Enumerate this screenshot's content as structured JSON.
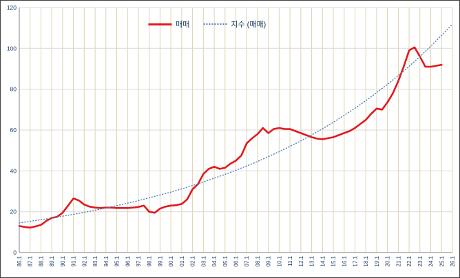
{
  "figure": {
    "background": "#ffffff",
    "border_color": "#404040"
  },
  "chart_data": {
    "type": "line",
    "title": "",
    "xlabel": "",
    "ylabel": "",
    "ylim": [
      0,
      120
    ],
    "y_ticks": [
      0,
      20,
      40,
      60,
      80,
      100,
      120
    ],
    "x_tick_labels": [
      "86.1",
      "87.1",
      "88.1",
      "89.1",
      "90.1",
      "91.1",
      "92.1",
      "93.1",
      "94.1",
      "95.1",
      "96.1",
      "97.1",
      "98.1",
      "99.1",
      "00.1",
      "01.1",
      "02.1",
      "03.1",
      "04.1",
      "05.1",
      "06.1",
      "07.1",
      "08.1",
      "09.1",
      "10.1",
      "11.1",
      "12.1",
      "13.1",
      "14.1",
      "15.1",
      "16.1",
      "17.1",
      "18.1",
      "19.1",
      "20.1",
      "21.1",
      "22.1",
      "23.1",
      "24.1",
      "25.1",
      "26.1"
    ],
    "label_color": "#17375e",
    "grid": {
      "vertical_color": "#ded3ae",
      "horizontal_color": "#d9d9d9",
      "axis_color": "#808080",
      "grid_on": true
    },
    "legend_position": "top-center",
    "series": [
      {
        "name": "매매",
        "style": "solid",
        "color": "#e1191c",
        "x_start": 0,
        "x_step": 0.5,
        "values": [
          13,
          12.5,
          12.2,
          12.8,
          13.5,
          15.5,
          17,
          17.5,
          19.5,
          23,
          26.5,
          25.5,
          23.5,
          22.5,
          22,
          21.8,
          22,
          22,
          21.8,
          21.8,
          21.8,
          22,
          22.3,
          23,
          20,
          19.5,
          21.5,
          22.5,
          23,
          23.2,
          23.8,
          26,
          31,
          33.5,
          38.5,
          41,
          42,
          41,
          41.5,
          43.5,
          45,
          47.5,
          53.5,
          56,
          58,
          61,
          58.5,
          60.5,
          61,
          60.5,
          60.5,
          59.5,
          58.5,
          57.5,
          56.5,
          55.8,
          55.5,
          56,
          56.5,
          57.5,
          58.5,
          59.5,
          61,
          63,
          65,
          68,
          70.5,
          70,
          73.5,
          78,
          84,
          91,
          99,
          100.5,
          96,
          91,
          91,
          91.5,
          92
        ]
      },
      {
        "name": "지수 (매매)",
        "style": "dotted",
        "color": "#4f81bd",
        "x_start": 0,
        "x_step": 1,
        "values": [
          14.5,
          15.3,
          16.1,
          16.9,
          17.8,
          18.7,
          19.7,
          20.7,
          21.8,
          23,
          24.2,
          25.4,
          26.8,
          28.2,
          29.6,
          31.2,
          32.8,
          34.6,
          36.4,
          38.3,
          40.3,
          42.4,
          44.6,
          47,
          49.4,
          52,
          54.7,
          57.6,
          60.6,
          63.8,
          67.2,
          70.7,
          74.4,
          78.3,
          82.4,
          86.7,
          91.2,
          96,
          101.1,
          106.4,
          111.9
        ]
      }
    ]
  }
}
